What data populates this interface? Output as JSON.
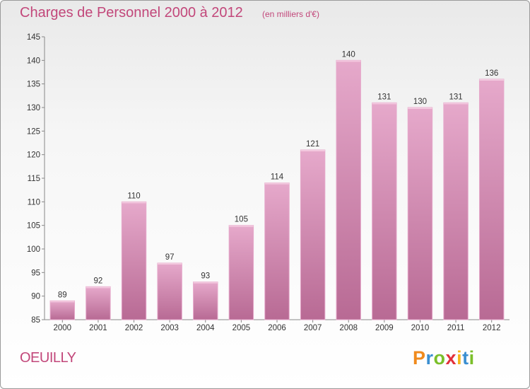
{
  "title": "Charges de Personnel 2000 à 2012",
  "subtitle": "(en milliers d'€)",
  "commune": "OEUILLY",
  "logo": {
    "text": "Proxiti",
    "letters": [
      "P",
      "r",
      "o",
      "x",
      "i",
      "t",
      "i"
    ],
    "colors": [
      "#f08a1c",
      "#3b8fd1",
      "#7bbf2a",
      "#e2303a",
      "#f6b81c",
      "#3b8fd1",
      "#7bbf2a"
    ]
  },
  "colors": {
    "bar": "#d98ab4",
    "bar_light": "#e6a9cb",
    "bar_dark": "#b86a94",
    "title": "#c2477a"
  },
  "chart_data": {
    "type": "bar",
    "title": "Charges de Personnel 2000 à 2012",
    "subtitle": "(en milliers d'€)",
    "categories": [
      "2000",
      "2001",
      "2002",
      "2003",
      "2004",
      "2005",
      "2006",
      "2007",
      "2008",
      "2009",
      "2010",
      "2011",
      "2012"
    ],
    "values": [
      89,
      92,
      110,
      97,
      93,
      105,
      114,
      121,
      140,
      131,
      130,
      131,
      136
    ],
    "ylim": [
      85,
      145
    ],
    "yticks": [
      85,
      90,
      95,
      100,
      105,
      110,
      115,
      120,
      125,
      130,
      135,
      140,
      145
    ],
    "xlabel": "",
    "ylabel": "",
    "grid": false,
    "data_labels": true
  }
}
